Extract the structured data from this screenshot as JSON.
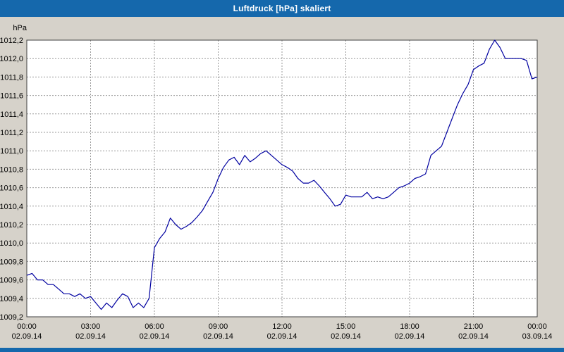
{
  "window": {
    "title": "Luftdruck [hPa] skaliert"
  },
  "colors": {
    "title_bar": "#1568ac",
    "title_text": "#ffffff",
    "chart_bg": "#d6d2ca",
    "plot_bg": "#ffffff",
    "grid": "#9a9a9a",
    "border": "#404040",
    "line": "#0000a0"
  },
  "chart_data": {
    "type": "line",
    "title": "Luftdruck [hPa] skaliert",
    "ylabel": "hPa",
    "xlabel": "",
    "ylim": [
      1009.2,
      1012.2
    ],
    "y_tick_step": 0.2,
    "y_tick_decimal_separator": ",",
    "x_range": [
      0,
      24
    ],
    "x_step_hours": 0.25,
    "x_hours": [
      0,
      3,
      6,
      9,
      12,
      15,
      18,
      21,
      24
    ],
    "x_tick_labels": [
      "00:00",
      "03:00",
      "06:00",
      "09:00",
      "12:00",
      "15:00",
      "18:00",
      "21:00",
      "00:00"
    ],
    "x_date_labels": [
      "02.09.14",
      "02.09.14",
      "02.09.14",
      "02.09.14",
      "02.09.14",
      "02.09.14",
      "02.09.14",
      "02.09.14",
      "03.09.14"
    ],
    "grid": "dashed",
    "legend": "none",
    "series": [
      {
        "name": "Luftdruck",
        "values": [
          1009.65,
          1009.67,
          1009.6,
          1009.6,
          1009.55,
          1009.55,
          1009.5,
          1009.45,
          1009.45,
          1009.42,
          1009.45,
          1009.4,
          1009.42,
          1009.35,
          1009.28,
          1009.35,
          1009.3,
          1009.38,
          1009.45,
          1009.42,
          1009.3,
          1009.35,
          1009.3,
          1009.4,
          1009.95,
          1010.05,
          1010.12,
          1010.27,
          1010.2,
          1010.15,
          1010.18,
          1010.22,
          1010.28,
          1010.35,
          1010.45,
          1010.55,
          1010.7,
          1010.82,
          1010.9,
          1010.93,
          1010.85,
          1010.95,
          1010.88,
          1010.92,
          1010.97,
          1011.0,
          1010.95,
          1010.9,
          1010.85,
          1010.82,
          1010.78,
          1010.7,
          1010.65,
          1010.65,
          1010.68,
          1010.62,
          1010.55,
          1010.48,
          1010.4,
          1010.42,
          1010.52,
          1010.5,
          1010.5,
          1010.5,
          1010.55,
          1010.48,
          1010.5,
          1010.48,
          1010.5,
          1010.55,
          1010.6,
          1010.62,
          1010.65,
          1010.7,
          1010.72,
          1010.75,
          1010.95,
          1011.0,
          1011.05,
          1011.2,
          1011.35,
          1011.5,
          1011.62,
          1011.72,
          1011.88,
          1011.92,
          1011.95,
          1012.1,
          1012.2,
          1012.12,
          1012.0,
          1012.0,
          1012.0,
          1012.0,
          1011.98,
          1011.78,
          1011.8
        ]
      }
    ]
  }
}
